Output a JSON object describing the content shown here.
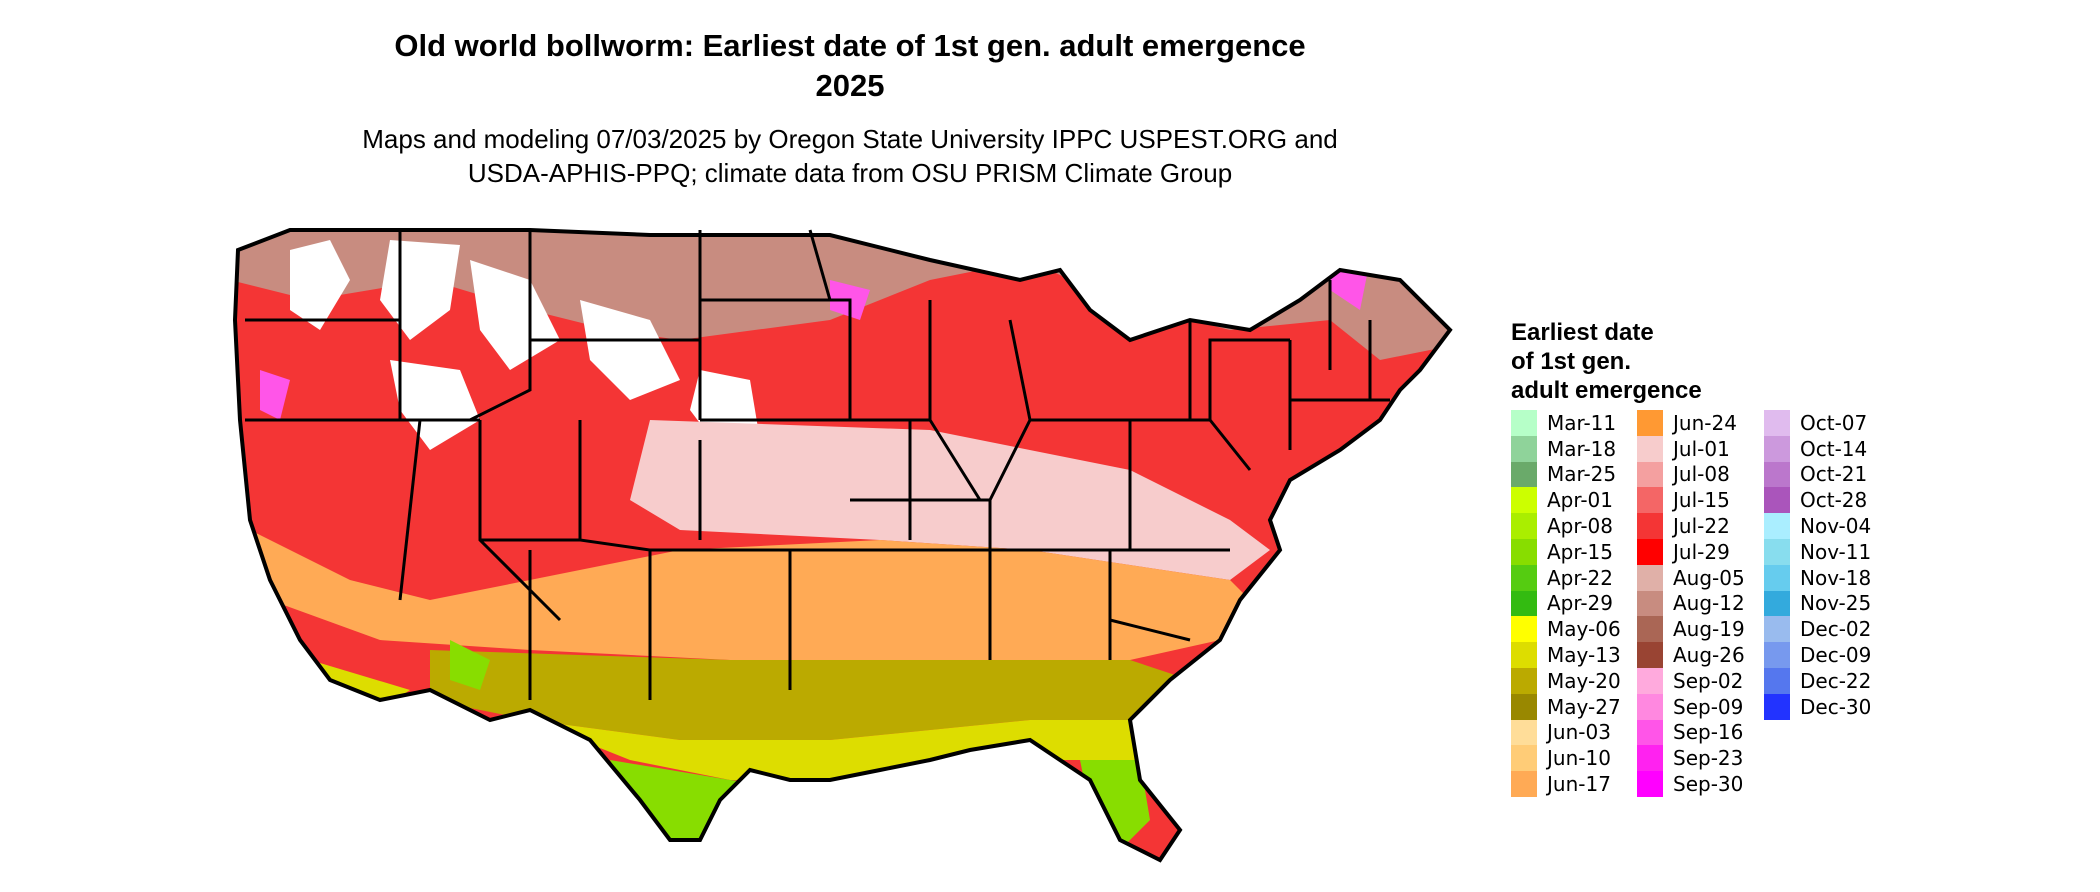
{
  "title_line1": "Old world bollworm: Earliest date of 1st gen. adult emergence",
  "title_line2": "2025",
  "subtitle_line1": "Maps and modeling 07/03/2025 by Oregon State University IPPC USPEST.ORG and",
  "subtitle_line2": "USDA-APHIS-PPQ; climate data from OSU PRISM Climate Group",
  "legend": {
    "title_lines": [
      "Earliest date",
      "of 1st gen.",
      "adult emergence"
    ],
    "columns": [
      [
        {
          "label": "Mar-11",
          "color": "#b6ffc8"
        },
        {
          "label": "Mar-18",
          "color": "#8fd39a"
        },
        {
          "label": "Mar-25",
          "color": "#6aaa6a"
        },
        {
          "label": "Apr-01",
          "color": "#ccff00"
        },
        {
          "label": "Apr-08",
          "color": "#aaee00"
        },
        {
          "label": "Apr-15",
          "color": "#88dd00"
        },
        {
          "label": "Apr-22",
          "color": "#55cc11"
        },
        {
          "label": "Apr-29",
          "color": "#33bb11"
        },
        {
          "label": "May-06",
          "color": "#ffff00"
        },
        {
          "label": "May-13",
          "color": "#dddd00"
        },
        {
          "label": "May-20",
          "color": "#bbaa00"
        },
        {
          "label": "May-27",
          "color": "#998800"
        },
        {
          "label": "Jun-03",
          "color": "#ffdd99"
        },
        {
          "label": "Jun-10",
          "color": "#ffcc77"
        },
        {
          "label": "Jun-17",
          "color": "#ffaa55"
        }
      ],
      [
        {
          "label": "Jun-24",
          "color": "#ff9933"
        },
        {
          "label": "Jul-01",
          "color": "#f7cccc"
        },
        {
          "label": "Jul-08",
          "color": "#f4a0a0"
        },
        {
          "label": "Jul-15",
          "color": "#f46666"
        },
        {
          "label": "Jul-22",
          "color": "#f43535"
        },
        {
          "label": "Jul-29",
          "color": "#ff0000"
        },
        {
          "label": "Aug-05",
          "color": "#e0b0a8"
        },
        {
          "label": "Aug-12",
          "color": "#c88c80"
        },
        {
          "label": "Aug-19",
          "color": "#aa6655"
        },
        {
          "label": "Aug-26",
          "color": "#994433"
        },
        {
          "label": "Sep-02",
          "color": "#ffaadd"
        },
        {
          "label": "Sep-09",
          "color": "#ff88e0"
        },
        {
          "label": "Sep-16",
          "color": "#ff55e8"
        },
        {
          "label": "Sep-23",
          "color": "#ff22f0"
        },
        {
          "label": "Sep-30",
          "color": "#ff00ff"
        }
      ],
      [
        {
          "label": "Oct-07",
          "color": "#e0bbee"
        },
        {
          "label": "Oct-14",
          "color": "#cc99dd"
        },
        {
          "label": "Oct-21",
          "color": "#bb77cc"
        },
        {
          "label": "Oct-28",
          "color": "#aa55bb"
        },
        {
          "label": "Nov-04",
          "color": "#aaeeff"
        },
        {
          "label": "Nov-11",
          "color": "#88ddee"
        },
        {
          "label": "Nov-18",
          "color": "#66ccee"
        },
        {
          "label": "Nov-25",
          "color": "#33aadd"
        },
        {
          "label": "Dec-02",
          "color": "#99bbee"
        },
        {
          "label": "Dec-09",
          "color": "#7799ee"
        },
        {
          "label": "Dec-22",
          "color": "#5577ee"
        },
        {
          "label": "Dec-30",
          "color": "#2233ff"
        }
      ]
    ]
  },
  "map_fills": {
    "north_red": "#f43535",
    "north_brown": "#c88c80",
    "white_mountains": "#ffffff",
    "pink": "#f7cccc",
    "orange": "#ffaa55",
    "olive": "#bbaa00",
    "yellow": "#dddd00",
    "green": "#88dd00",
    "magenta": "#ff55e8"
  }
}
